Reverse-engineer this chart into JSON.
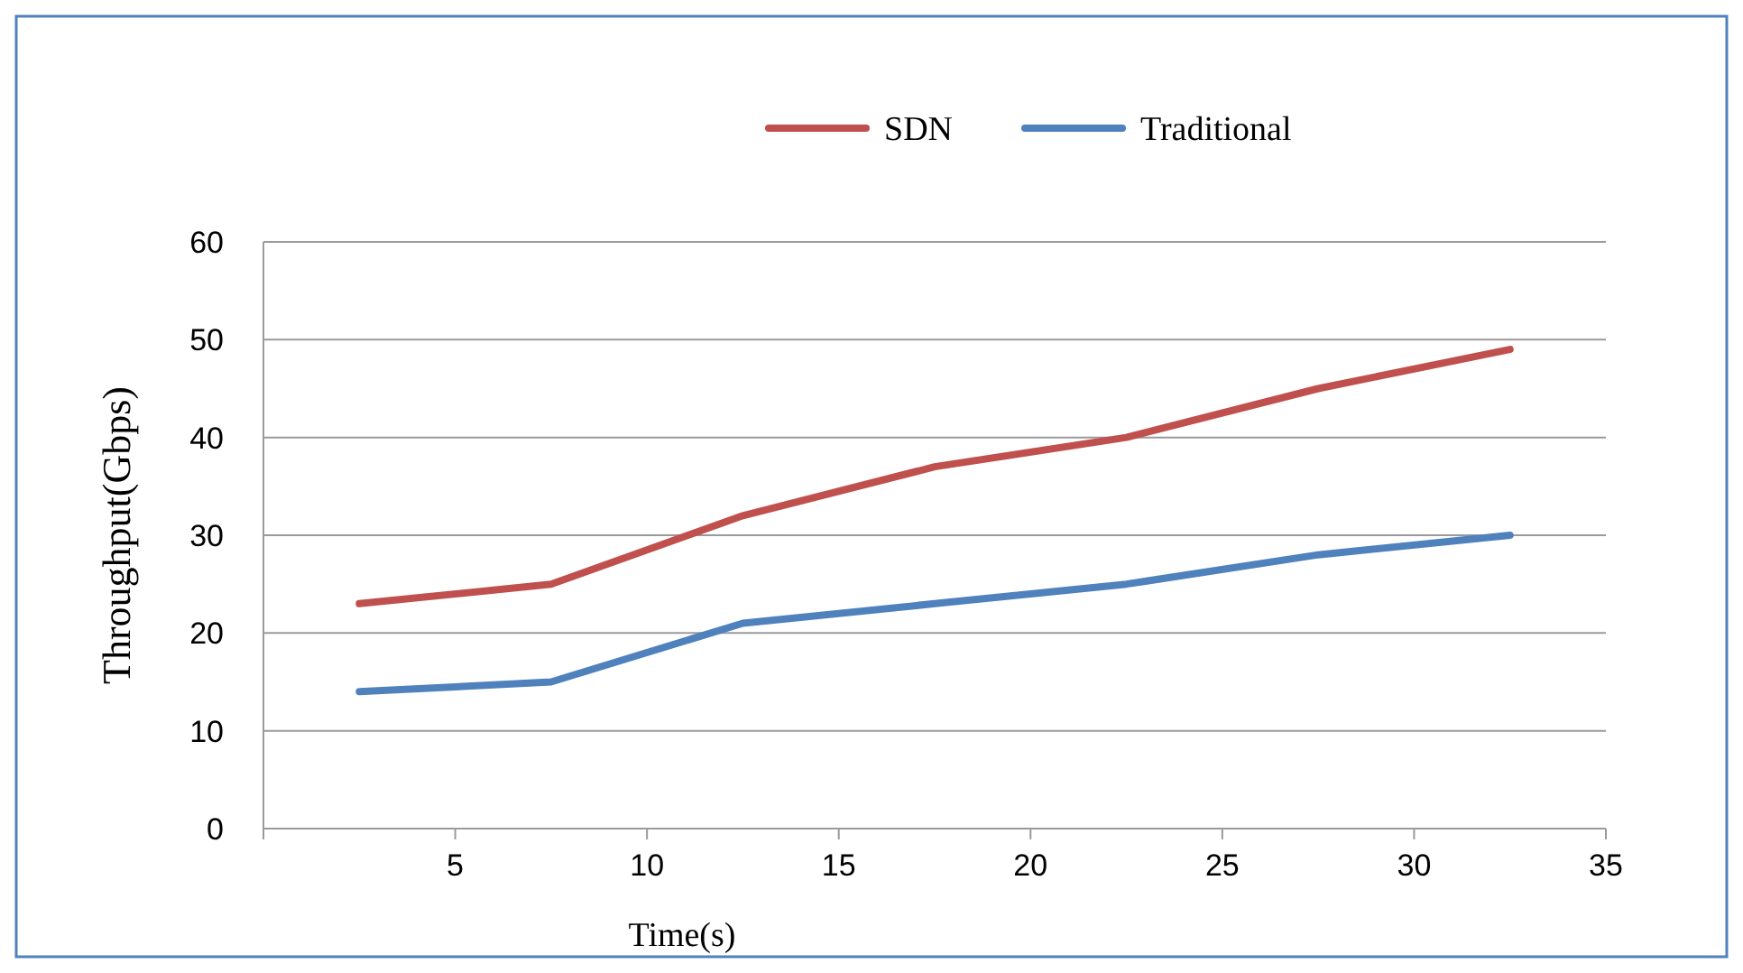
{
  "chart_data": {
    "type": "line",
    "xlabel": "Time(s)",
    "ylabel": "Throughput(Gbps)",
    "x": [
      2.5,
      7.5,
      12.5,
      17.5,
      22.5,
      27.5,
      32.5
    ],
    "series": [
      {
        "name": "SDN",
        "color": "#c0504d",
        "values": [
          23,
          25,
          32,
          37,
          40,
          45,
          49
        ]
      },
      {
        "name": "Traditional",
        "color": "#4f81bd",
        "values": [
          14,
          15,
          21,
          23,
          25,
          28,
          30
        ]
      }
    ],
    "xlim": [
      0,
      35
    ],
    "xticks": [
      5,
      10,
      15,
      20,
      25,
      30,
      35
    ],
    "ylim": [
      0,
      60
    ],
    "yticks": [
      0,
      10,
      20,
      30,
      40,
      50,
      60
    ],
    "grid": "y",
    "legend": "top",
    "marker": "none",
    "line_style": "solid"
  }
}
